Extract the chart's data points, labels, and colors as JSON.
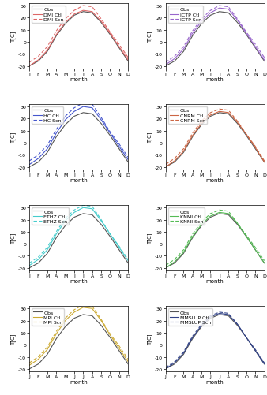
{
  "months": [
    1,
    2,
    3,
    4,
    5,
    6,
    7,
    8,
    9,
    10,
    11,
    12
  ],
  "month_labels": [
    "J",
    "F",
    "M",
    "A",
    "M",
    "J",
    "J",
    "A",
    "S",
    "O",
    "N",
    "D"
  ],
  "obs_color": "#555555",
  "subplots": [
    {
      "model": "DMI",
      "ctl_label": "DMI Ctl",
      "scn_label": "DMI Scn",
      "color": "#dd6666",
      "obs": [
        -20,
        -16,
        -8,
        5,
        15,
        22,
        25,
        24,
        16,
        6,
        -5,
        -16
      ],
      "ctl": [
        -20,
        -15,
        -7,
        6,
        16,
        23,
        26,
        25,
        17,
        7,
        -4,
        -15
      ],
      "scn": [
        -17,
        -12,
        -4,
        9,
        19,
        26,
        30,
        29,
        19,
        8,
        -2,
        -13
      ]
    },
    {
      "model": "ICTP",
      "ctl_label": "ICTP Ctl",
      "scn_label": "ICTP Scn",
      "color": "#9966cc",
      "obs": [
        -20,
        -16,
        -8,
        5,
        15,
        22,
        25,
        24,
        16,
        6,
        -5,
        -16
      ],
      "ctl": [
        -19,
        -14,
        -6,
        7,
        17,
        24,
        28,
        27,
        18,
        7,
        -4,
        -15
      ],
      "scn": [
        -17,
        -12,
        -4,
        9,
        19,
        26,
        30,
        29,
        19,
        8,
        -2,
        -13
      ]
    },
    {
      "model": "HC",
      "ctl_label": "HC Ctl",
      "scn_label": "HC Scn",
      "color": "#4455cc",
      "obs": [
        -20,
        -16,
        -8,
        5,
        15,
        22,
        25,
        24,
        16,
        6,
        -5,
        -16
      ],
      "ctl": [
        -18,
        -13,
        -5,
        8,
        19,
        26,
        30,
        29,
        19,
        8,
        -3,
        -14
      ],
      "scn": [
        -15,
        -10,
        -2,
        11,
        22,
        29,
        33,
        32,
        21,
        9,
        -1,
        -12
      ]
    },
    {
      "model": "CNRM",
      "ctl_label": "CNRM Ctl",
      "scn_label": "CNRM Scn",
      "color": "#cc6644",
      "obs": [
        -20,
        -16,
        -8,
        5,
        15,
        22,
        25,
        24,
        16,
        6,
        -5,
        -16
      ],
      "ctl": [
        -20,
        -15,
        -7,
        6,
        16,
        23,
        26,
        25,
        17,
        7,
        -4,
        -16
      ],
      "scn": [
        -18,
        -13,
        -5,
        8,
        18,
        25,
        28,
        27,
        18,
        7,
        -3,
        -15
      ]
    },
    {
      "model": "ETHZ",
      "ctl_label": "ETHZ Ctl",
      "scn_label": "ETHZ Scn",
      "color": "#44cccc",
      "obs": [
        -20,
        -16,
        -8,
        5,
        15,
        22,
        25,
        24,
        16,
        6,
        -5,
        -16
      ],
      "ctl": [
        -18,
        -13,
        -5,
        8,
        19,
        26,
        30,
        29,
        19,
        8,
        -3,
        -14
      ],
      "scn": [
        -16,
        -11,
        -3,
        10,
        21,
        28,
        32,
        31,
        20,
        8,
        -2,
        -13
      ]
    },
    {
      "model": "KNMI",
      "ctl_label": "KNMI Ctl",
      "scn_label": "KNMI Scn",
      "color": "#55bb55",
      "obs": [
        -20,
        -16,
        -8,
        5,
        15,
        22,
        25,
        24,
        16,
        6,
        -5,
        -16
      ],
      "ctl": [
        -20,
        -15,
        -7,
        6,
        16,
        23,
        26,
        25,
        17,
        6,
        -5,
        -16
      ],
      "scn": [
        -18,
        -13,
        -5,
        8,
        18,
        25,
        28,
        27,
        17,
        7,
        -3,
        -14
      ]
    },
    {
      "model": "MPI",
      "ctl_label": "MPI Ctl",
      "scn_label": "MPI Scn",
      "color": "#ccaa33",
      "obs": [
        -20,
        -16,
        -8,
        5,
        15,
        22,
        25,
        24,
        16,
        6,
        -5,
        -16
      ],
      "ctl": [
        -17,
        -12,
        -4,
        9,
        20,
        27,
        31,
        30,
        20,
        8,
        -3,
        -14
      ],
      "scn": [
        -15,
        -10,
        -2,
        11,
        22,
        29,
        33,
        32,
        21,
        9,
        -1,
        -12
      ]
    },
    {
      "model": "MMSLUP",
      "ctl_label": "MMSLUP Ctl",
      "scn_label": "MMSLUP Scn",
      "color": "#334488",
      "obs": [
        -20,
        -16,
        -8,
        5,
        15,
        22,
        25,
        24,
        16,
        6,
        -5,
        -16
      ],
      "ctl": [
        -20,
        -15,
        -7,
        6,
        16,
        23,
        26,
        25,
        17,
        6,
        -5,
        -16
      ],
      "scn": [
        -19,
        -14,
        -6,
        7,
        17,
        24,
        27,
        26,
        17,
        6,
        -4,
        -15
      ]
    }
  ],
  "ylim": [
    -22,
    32
  ],
  "ytick_sets": {
    "default": [
      -20,
      -10,
      0,
      10,
      20,
      30
    ],
    "row2_left": [
      -20,
      -10,
      0,
      10,
      20,
      30
    ]
  },
  "ylabel": "T[C]",
  "xlabel": "month",
  "obs_lw": 0.8,
  "ctl_lw": 0.8,
  "scn_lw": 0.8,
  "fontsize_legend": 4.5,
  "fontsize_tick": 4.5,
  "fontsize_label": 5.0,
  "legend_loc": "upper left"
}
